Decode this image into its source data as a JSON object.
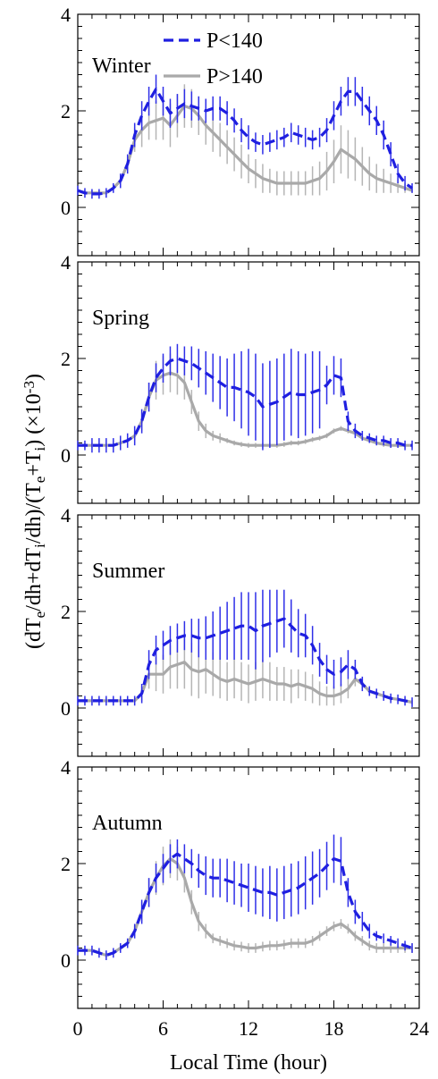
{
  "chart_data": {
    "type": "line",
    "shared_x": {
      "label": "Local Time (hour)",
      "ticks": [
        0,
        6,
        12,
        18,
        24
      ],
      "range": [
        0,
        24
      ]
    },
    "shared_y": {
      "label_parts": [
        "(dT",
        "e",
        "/dh+dT",
        "i",
        "/dh)/(T",
        "e",
        "+T",
        "i",
        ") (×10",
        "-3",
        ")"
      ],
      "ticks": [
        0,
        2,
        4
      ],
      "range": [
        -1,
        4
      ]
    },
    "legend": {
      "placement": "top-center",
      "entries": [
        {
          "name": "P<140",
          "color": "#1f1fe0",
          "style": "dashed"
        },
        {
          "name": "P>140",
          "color": "#a9a9a9",
          "style": "solid"
        }
      ]
    },
    "error_colors": {
      "P<140": "#2f2fe8",
      "P>140": "#b5b5b5"
    },
    "x": [
      0,
      0.5,
      1,
      1.5,
      2,
      2.5,
      3,
      3.5,
      4,
      4.5,
      5,
      5.5,
      6,
      6.5,
      7,
      7.5,
      8,
      8.5,
      9,
      9.5,
      10,
      10.5,
      11,
      11.5,
      12,
      12.5,
      13,
      13.5,
      14,
      14.5,
      15,
      15.5,
      16,
      16.5,
      17,
      17.5,
      18,
      18.5,
      19,
      19.5,
      20,
      20.5,
      21,
      21.5,
      22,
      22.5,
      23,
      23.5
    ],
    "panels": [
      {
        "name": "Winter",
        "series": [
          {
            "name": "P<140",
            "values": [
              0.35,
              0.3,
              0.28,
              0.28,
              0.3,
              0.4,
              0.55,
              0.9,
              1.5,
              1.9,
              2.2,
              2.45,
              2.2,
              1.95,
              2.05,
              2.15,
              2.1,
              2.05,
              2.0,
              2.05,
              2.05,
              1.95,
              1.8,
              1.6,
              1.45,
              1.35,
              1.3,
              1.35,
              1.4,
              1.45,
              1.55,
              1.5,
              1.45,
              1.4,
              1.45,
              1.6,
              1.9,
              2.2,
              2.4,
              2.4,
              2.2,
              2.0,
              1.8,
              1.5,
              1.1,
              0.7,
              0.5,
              0.4
            ],
            "errors": [
              0.1,
              0.1,
              0.1,
              0.1,
              0.1,
              0.1,
              0.15,
              0.2,
              0.25,
              0.3,
              0.3,
              0.3,
              0.3,
              0.3,
              0.3,
              0.3,
              0.3,
              0.25,
              0.25,
              0.25,
              0.25,
              0.25,
              0.25,
              0.25,
              0.25,
              0.2,
              0.2,
              0.2,
              0.2,
              0.2,
              0.2,
              0.2,
              0.2,
              0.2,
              0.2,
              0.25,
              0.3,
              0.3,
              0.3,
              0.3,
              0.3,
              0.3,
              0.3,
              0.3,
              0.25,
              0.2,
              0.15,
              0.1
            ]
          },
          {
            "name": "P>140",
            "values": [
              0.35,
              0.3,
              0.3,
              0.3,
              0.3,
              0.4,
              0.55,
              0.9,
              1.4,
              1.6,
              1.75,
              1.8,
              1.85,
              1.7,
              1.9,
              2.1,
              2.05,
              1.9,
              1.7,
              1.55,
              1.4,
              1.25,
              1.1,
              0.95,
              0.8,
              0.7,
              0.6,
              0.55,
              0.5,
              0.5,
              0.5,
              0.5,
              0.5,
              0.55,
              0.6,
              0.75,
              0.95,
              1.2,
              1.1,
              1.0,
              0.85,
              0.7,
              0.6,
              0.55,
              0.5,
              0.45,
              0.4,
              0.35
            ],
            "errors": [
              0.05,
              0.05,
              0.05,
              0.05,
              0.05,
              0.05,
              0.05,
              0.1,
              0.25,
              0.35,
              0.35,
              0.4,
              0.45,
              0.45,
              0.45,
              0.45,
              0.4,
              0.4,
              0.4,
              0.4,
              0.35,
              0.35,
              0.35,
              0.35,
              0.3,
              0.3,
              0.3,
              0.25,
              0.25,
              0.25,
              0.25,
              0.25,
              0.25,
              0.3,
              0.35,
              0.4,
              0.45,
              0.5,
              0.5,
              0.45,
              0.4,
              0.35,
              0.3,
              0.25,
              0.2,
              0.15,
              0.1,
              0.05
            ]
          }
        ]
      },
      {
        "name": "Spring",
        "series": [
          {
            "name": "P<140",
            "values": [
              0.2,
              0.2,
              0.2,
              0.2,
              0.2,
              0.2,
              0.25,
              0.3,
              0.4,
              0.7,
              1.2,
              1.6,
              1.8,
              1.95,
              2.0,
              1.95,
              1.9,
              1.8,
              1.7,
              1.6,
              1.5,
              1.4,
              1.4,
              1.35,
              1.3,
              1.2,
              1.0,
              1.05,
              1.1,
              1.2,
              1.3,
              1.25,
              1.25,
              1.3,
              1.35,
              1.45,
              1.65,
              1.6,
              0.7,
              0.5,
              0.4,
              0.35,
              0.3,
              0.3,
              0.25,
              0.25,
              0.2,
              0.2
            ],
            "errors": [
              0.1,
              0.1,
              0.15,
              0.15,
              0.15,
              0.15,
              0.15,
              0.15,
              0.2,
              0.25,
              0.3,
              0.3,
              0.3,
              0.3,
              0.3,
              0.3,
              0.35,
              0.4,
              0.45,
              0.5,
              0.55,
              0.6,
              0.7,
              0.8,
              0.9,
              0.9,
              0.9,
              0.9,
              0.9,
              0.9,
              0.9,
              0.9,
              0.85,
              0.85,
              0.8,
              0.4,
              0.4,
              0.4,
              0.2,
              0.15,
              0.1,
              0.1,
              0.1,
              0.1,
              0.1,
              0.1,
              0.1,
              0.1
            ]
          },
          {
            "name": "P>140",
            "values": [
              0.2,
              0.2,
              0.2,
              0.2,
              0.2,
              0.2,
              0.25,
              0.3,
              0.4,
              0.7,
              1.2,
              1.55,
              1.65,
              1.7,
              1.65,
              1.5,
              1.1,
              0.7,
              0.5,
              0.4,
              0.35,
              0.3,
              0.25,
              0.22,
              0.2,
              0.2,
              0.2,
              0.2,
              0.2,
              0.22,
              0.25,
              0.25,
              0.28,
              0.32,
              0.35,
              0.4,
              0.5,
              0.55,
              0.5,
              0.45,
              0.35,
              0.3,
              0.25,
              0.22,
              0.2,
              0.2,
              0.2,
              0.2
            ],
            "errors": [
              0.05,
              0.05,
              0.05,
              0.05,
              0.05,
              0.05,
              0.05,
              0.05,
              0.1,
              0.2,
              0.3,
              0.4,
              0.4,
              0.4,
              0.4,
              0.35,
              0.25,
              0.2,
              0.15,
              0.1,
              0.1,
              0.05,
              0.05,
              0.05,
              0.05,
              0.05,
              0.05,
              0.05,
              0.05,
              0.05,
              0.05,
              0.05,
              0.05,
              0.05,
              0.05,
              0.05,
              0.05,
              0.05,
              0.05,
              0.05,
              0.05,
              0.05,
              0.05,
              0.05,
              0.05,
              0.05,
              0.05,
              0.05
            ]
          }
        ]
      },
      {
        "name": "Summer",
        "series": [
          {
            "name": "P<140",
            "values": [
              0.15,
              0.15,
              0.15,
              0.15,
              0.15,
              0.15,
              0.15,
              0.15,
              0.15,
              0.3,
              0.9,
              1.2,
              1.3,
              1.4,
              1.45,
              1.5,
              1.5,
              1.45,
              1.45,
              1.5,
              1.55,
              1.6,
              1.65,
              1.7,
              1.7,
              1.6,
              1.7,
              1.75,
              1.8,
              1.85,
              1.7,
              1.55,
              1.5,
              1.3,
              1.0,
              0.8,
              0.7,
              0.75,
              0.9,
              0.8,
              0.5,
              0.35,
              0.3,
              0.25,
              0.2,
              0.18,
              0.15,
              0.12
            ],
            "errors": [
              0.1,
              0.1,
              0.1,
              0.1,
              0.1,
              0.1,
              0.1,
              0.1,
              0.1,
              0.2,
              0.3,
              0.3,
              0.3,
              0.3,
              0.3,
              0.3,
              0.35,
              0.4,
              0.45,
              0.5,
              0.55,
              0.6,
              0.65,
              0.7,
              0.7,
              0.8,
              0.75,
              0.7,
              0.65,
              0.6,
              0.55,
              0.5,
              0.45,
              0.4,
              0.35,
              0.3,
              0.3,
              0.3,
              0.3,
              0.2,
              0.15,
              0.1,
              0.1,
              0.1,
              0.1,
              0.1,
              0.1,
              0.1
            ]
          },
          {
            "name": "P>140",
            "values": [
              0.15,
              0.15,
              0.15,
              0.15,
              0.15,
              0.15,
              0.15,
              0.15,
              0.15,
              0.3,
              0.7,
              0.7,
              0.7,
              0.85,
              0.9,
              0.95,
              0.8,
              0.75,
              0.8,
              0.7,
              0.6,
              0.55,
              0.6,
              0.55,
              0.5,
              0.55,
              0.6,
              0.55,
              0.5,
              0.5,
              0.45,
              0.5,
              0.45,
              0.4,
              0.3,
              0.25,
              0.25,
              0.3,
              0.4,
              0.6,
              0.5,
              0.35,
              0.3,
              0.25,
              0.2,
              0.18,
              0.15,
              0.12
            ],
            "errors": [
              0.05,
              0.05,
              0.05,
              0.05,
              0.05,
              0.05,
              0.05,
              0.05,
              0.05,
              0.15,
              0.3,
              0.35,
              0.4,
              0.45,
              0.5,
              0.55,
              0.55,
              0.55,
              0.5,
              0.45,
              0.4,
              0.4,
              0.4,
              0.4,
              0.4,
              0.4,
              0.4,
              0.4,
              0.35,
              0.35,
              0.35,
              0.3,
              0.3,
              0.3,
              0.25,
              0.2,
              0.2,
              0.2,
              0.2,
              0.15,
              0.1,
              0.1,
              0.05,
              0.05,
              0.05,
              0.05,
              0.05,
              0.05
            ]
          }
        ]
      },
      {
        "name": "Autumn",
        "series": [
          {
            "name": "P<140",
            "values": [
              0.2,
              0.2,
              0.2,
              0.15,
              0.1,
              0.15,
              0.25,
              0.35,
              0.6,
              1.0,
              1.4,
              1.7,
              1.9,
              2.1,
              2.2,
              2.1,
              2.0,
              1.85,
              1.75,
              1.7,
              1.7,
              1.65,
              1.6,
              1.55,
              1.5,
              1.45,
              1.4,
              1.4,
              1.35,
              1.4,
              1.45,
              1.5,
              1.6,
              1.7,
              1.8,
              1.95,
              2.1,
              2.05,
              1.4,
              1.0,
              0.8,
              0.6,
              0.5,
              0.45,
              0.4,
              0.35,
              0.3,
              0.25
            ],
            "errors": [
              0.1,
              0.1,
              0.1,
              0.1,
              0.1,
              0.1,
              0.1,
              0.1,
              0.15,
              0.25,
              0.3,
              0.3,
              0.3,
              0.3,
              0.3,
              0.3,
              0.3,
              0.35,
              0.4,
              0.4,
              0.4,
              0.45,
              0.45,
              0.45,
              0.5,
              0.5,
              0.5,
              0.55,
              0.55,
              0.55,
              0.55,
              0.55,
              0.55,
              0.55,
              0.5,
              0.5,
              0.5,
              0.5,
              0.3,
              0.25,
              0.2,
              0.15,
              0.1,
              0.1,
              0.1,
              0.1,
              0.1,
              0.1
            ]
          },
          {
            "name": "P>140",
            "values": [
              0.2,
              0.2,
              0.2,
              0.15,
              0.1,
              0.15,
              0.25,
              0.35,
              0.6,
              1.0,
              1.4,
              1.7,
              1.95,
              2.1,
              2.0,
              1.7,
              1.2,
              0.8,
              0.6,
              0.45,
              0.4,
              0.35,
              0.3,
              0.28,
              0.25,
              0.25,
              0.28,
              0.3,
              0.3,
              0.32,
              0.35,
              0.35,
              0.35,
              0.4,
              0.5,
              0.6,
              0.7,
              0.75,
              0.65,
              0.5,
              0.4,
              0.3,
              0.25,
              0.25,
              0.25,
              0.25,
              0.25,
              0.25
            ],
            "errors": [
              0.05,
              0.05,
              0.05,
              0.05,
              0.05,
              0.05,
              0.05,
              0.05,
              0.1,
              0.2,
              0.3,
              0.35,
              0.4,
              0.4,
              0.35,
              0.3,
              0.25,
              0.2,
              0.15,
              0.1,
              0.1,
              0.1,
              0.1,
              0.1,
              0.1,
              0.1,
              0.1,
              0.1,
              0.1,
              0.1,
              0.1,
              0.1,
              0.1,
              0.1,
              0.1,
              0.1,
              0.1,
              0.1,
              0.1,
              0.1,
              0.1,
              0.1,
              0.1,
              0.1,
              0.1,
              0.1,
              0.1,
              0.1
            ]
          }
        ]
      }
    ]
  }
}
